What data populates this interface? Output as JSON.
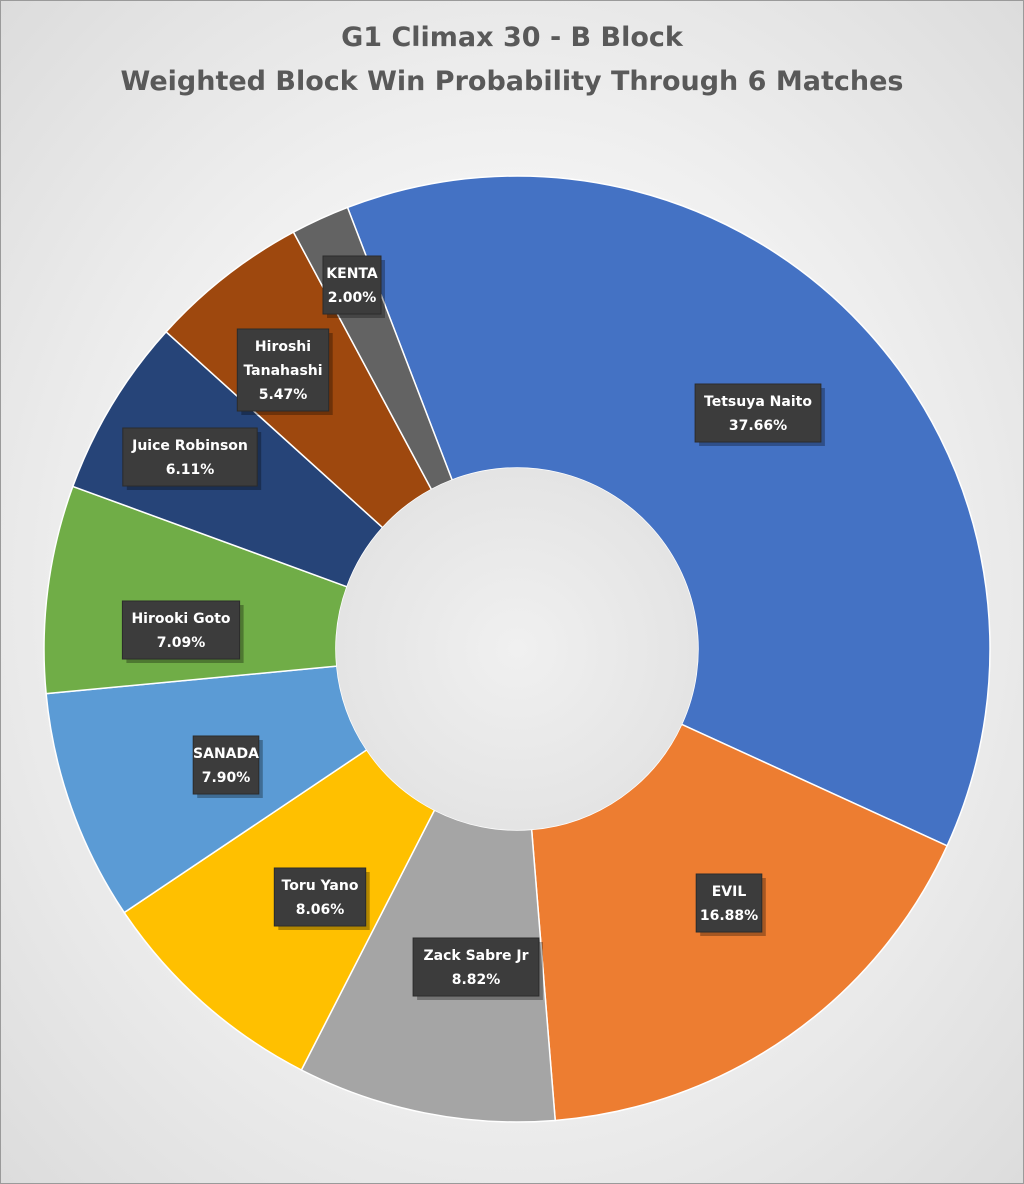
{
  "chart_data": {
    "type": "pie",
    "variant": "doughnut",
    "title": [
      "G1 Climax 30 - B Block",
      "Weighted Block Win Probability Through 6 Matches"
    ],
    "legend": "none",
    "data_labels": "category name and percentage",
    "slices": [
      {
        "name": "Tetsuya Naito",
        "label": [
          "Tetsuya Naito"
        ],
        "value": 37.66,
        "display": "37.66%",
        "color": "#4472C4"
      },
      {
        "name": "EVIL",
        "label": [
          "EVIL"
        ],
        "value": 16.88,
        "display": "16.88%",
        "color": "#ED7D31"
      },
      {
        "name": "Zack Sabre Jr",
        "label": [
          "Zack Sabre Jr"
        ],
        "value": 8.82,
        "display": "8.82%",
        "color": "#A5A5A5"
      },
      {
        "name": "Toru Yano",
        "label": [
          "Toru Yano"
        ],
        "value": 8.06,
        "display": "8.06%",
        "color": "#FFC000"
      },
      {
        "name": "SANADA",
        "label": [
          "SANADA"
        ],
        "value": 7.9,
        "display": "7.90%",
        "color": "#5B9BD5"
      },
      {
        "name": "Hirooki Goto",
        "label": [
          "Hirooki Goto"
        ],
        "value": 7.09,
        "display": "7.09%",
        "color": "#70AD47"
      },
      {
        "name": "Juice Robinson",
        "label": [
          "Juice Robinson"
        ],
        "value": 6.11,
        "display": "6.11%",
        "color": "#264478"
      },
      {
        "name": "Hiroshi Tanahashi",
        "label": [
          "Hiroshi",
          "Tanahashi"
        ],
        "value": 5.47,
        "display": "5.47%",
        "color": "#9E480E"
      },
      {
        "name": "KENTA",
        "label": [
          "KENTA"
        ],
        "value": 2.0,
        "display": "2.00%",
        "color": "#636363"
      }
    ]
  }
}
